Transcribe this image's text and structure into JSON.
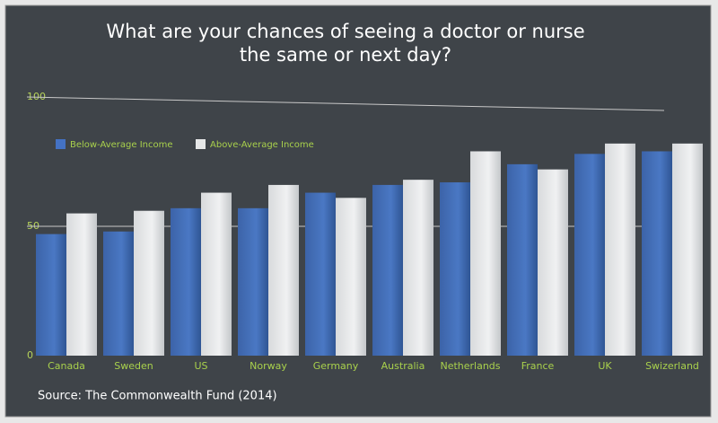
{
  "chart_data": {
    "type": "bar",
    "title": [
      "What are your chances of seeing a doctor or nurse",
      "the same or next day?"
    ],
    "source": "Source: The Commonwealth Fund (2014)",
    "categories": [
      "Canada",
      "Sweden",
      "US",
      "Norway",
      "Germany",
      "Australia",
      "Netherlands",
      "France",
      "UK",
      "Swizerland"
    ],
    "series": [
      {
        "name": "Below-Average Income",
        "color": "#4472c4",
        "values": [
          47,
          48,
          57,
          57,
          63,
          66,
          67,
          74,
          78,
          79
        ]
      },
      {
        "name": "Above-Average Income",
        "color": "#e6e7e8",
        "values": [
          55,
          56,
          63,
          66,
          61,
          68,
          79,
          72,
          82,
          82
        ]
      }
    ],
    "ylim": [
      0,
      100
    ],
    "yticks": [
      0,
      50,
      100
    ],
    "grid": true,
    "legend": "top-left"
  }
}
